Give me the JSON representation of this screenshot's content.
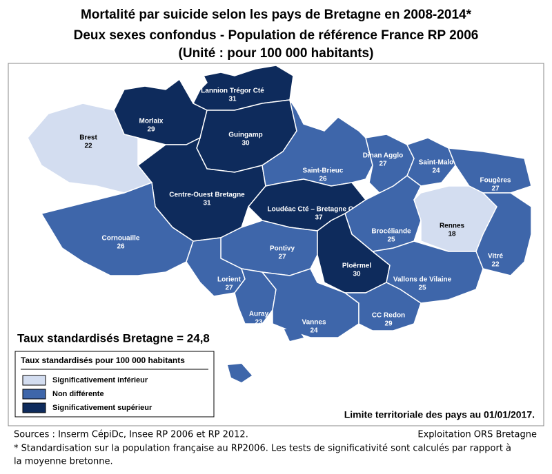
{
  "title": [
    "Mortalité par suicide selon les pays de Bretagne en 2008-2014*",
    "Deux sexes confondus - Population de référence France RP 2006",
    "(Unité : pour 100 000 habitants)"
  ],
  "summary": "Taux standardisés Bretagne = 24,8",
  "legend": {
    "title": "Taux standardisés pour 100 000 habitants",
    "items": [
      {
        "label": "Significativement inférieur",
        "color": "#d3ddf0"
      },
      {
        "label": "Non différente",
        "color": "#3e66aa"
      },
      {
        "label": "Significativement supérieur",
        "color": "#0e2b5c"
      }
    ]
  },
  "regions": [
    {
      "name": "Lannion Trégor Cté",
      "value": "31",
      "level": 2
    },
    {
      "name": "Morlaix",
      "value": "29",
      "level": 2
    },
    {
      "name": "Guingamp",
      "value": "30",
      "level": 2
    },
    {
      "name": "Brest",
      "value": "22",
      "level": 0
    },
    {
      "name": "Centre-Ouest Bretagne",
      "value": "31",
      "level": 2
    },
    {
      "name": "Saint-Brieuc",
      "value": "26",
      "level": 1
    },
    {
      "name": "Dinan Agglo",
      "value": "27",
      "level": 1
    },
    {
      "name": "Saint-Malo",
      "value": "24",
      "level": 1
    },
    {
      "name": "Fougères",
      "value": "27",
      "level": 1
    },
    {
      "name": "Loudéac Cté – Bretagne Centre",
      "value": "37",
      "level": 2
    },
    {
      "name": "Cornouaille",
      "value": "26",
      "level": 1
    },
    {
      "name": "Pontivy",
      "value": "27",
      "level": 1
    },
    {
      "name": "Brocéliande",
      "value": "25",
      "level": 1
    },
    {
      "name": "Rennes",
      "value": "18",
      "level": 0
    },
    {
      "name": "Vitré",
      "value": "22",
      "level": 1
    },
    {
      "name": "Ploërmel",
      "value": "30",
      "level": 2
    },
    {
      "name": "Lorient",
      "value": "27",
      "level": 1
    },
    {
      "name": "Vallons de Vilaine",
      "value": "25",
      "level": 1
    },
    {
      "name": "Auray",
      "value": "23",
      "level": 1
    },
    {
      "name": "Vannes",
      "value": "24",
      "level": 1
    },
    {
      "name": "CC Redon",
      "value": "29",
      "level": 1
    }
  ],
  "limit_note": "Limite territoriale des pays au 01/01/2017.",
  "footer": {
    "sources": "Sources : Inserm CépiDc, Insee RP 2006 et RP 2012.",
    "credit": "Exploitation ORS Bretagne",
    "note": [
      "* Standardisation sur la population française au RP2006. Les tests de significativité sont calculés par rapport à",
      "la moyenne bretonne."
    ]
  }
}
